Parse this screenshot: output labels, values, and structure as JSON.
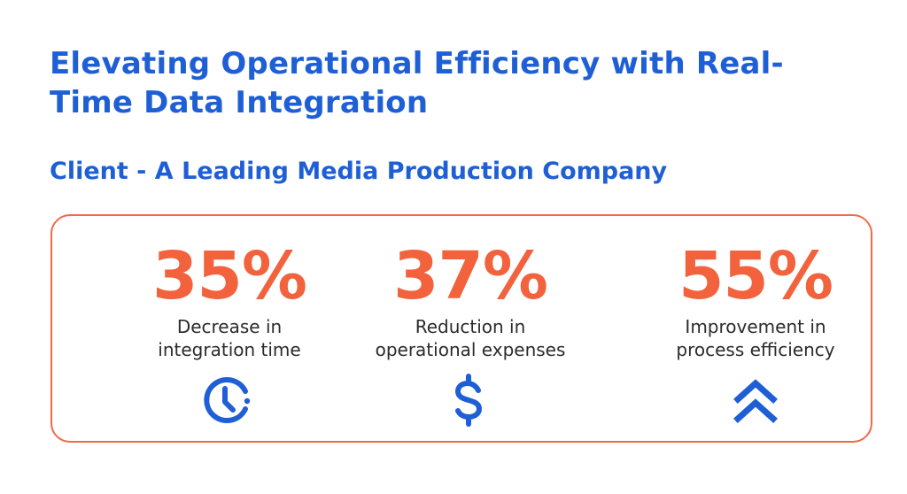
{
  "header": {
    "title": "Elevating Operational Efficiency with Real-Time Data Integration",
    "subtitle": "Client - A Leading Media Production Company"
  },
  "colors": {
    "title": "#1f5fd6",
    "accent": "#f2623d",
    "border": "#f06a47",
    "icon": "#1f5fd6",
    "label": "#2b2b2b"
  },
  "stats": [
    {
      "value": "35%",
      "label_line1": "Decrease in",
      "label_line2": "integration time",
      "icon": "clock-icon"
    },
    {
      "value": "37%",
      "label_line1": "Reduction in",
      "label_line2": "operational expenses",
      "icon": "dollar-icon"
    },
    {
      "value": "55%",
      "label_line1": "Improvement in",
      "label_line2": "process efficiency",
      "icon": "double-chevron-up-icon"
    }
  ]
}
